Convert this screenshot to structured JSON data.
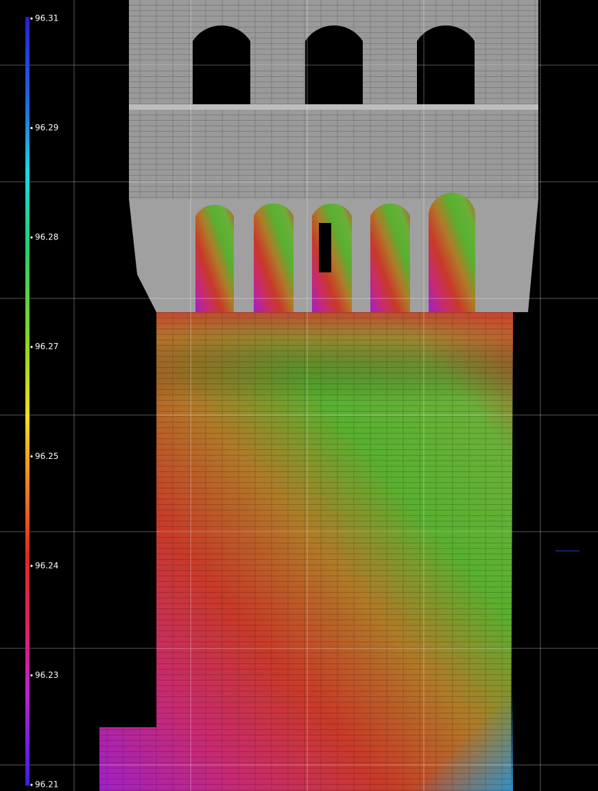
{
  "colorbar": {
    "labels": [
      "96.31",
      "96.29",
      "96.28",
      "96.27",
      "96.25",
      "96.24",
      "96.23",
      "96.21"
    ]
  }
}
